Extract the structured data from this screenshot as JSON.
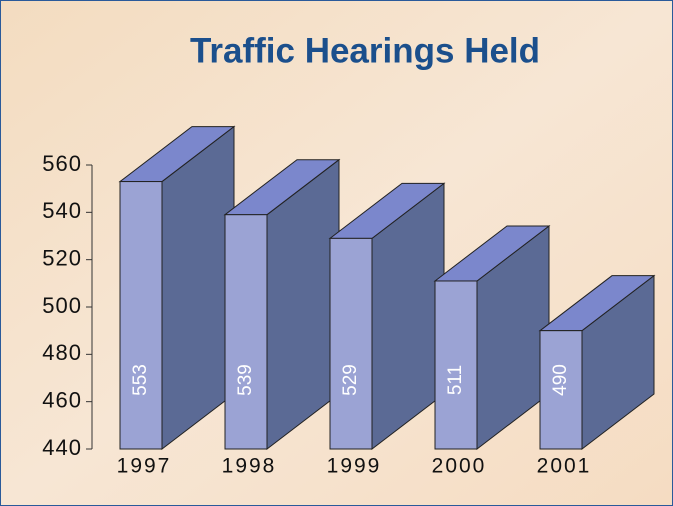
{
  "chart_data": {
    "type": "bar3d",
    "title": "Traffic Hearings Held",
    "categories": [
      "1997",
      "1998",
      "1999",
      "2000",
      "2001"
    ],
    "values": [
      553,
      539,
      529,
      511,
      490
    ],
    "color": "#9ba3d4",
    "ylim": [
      440,
      560
    ],
    "yticks": [
      440,
      460,
      480,
      500,
      520,
      540,
      560
    ]
  }
}
